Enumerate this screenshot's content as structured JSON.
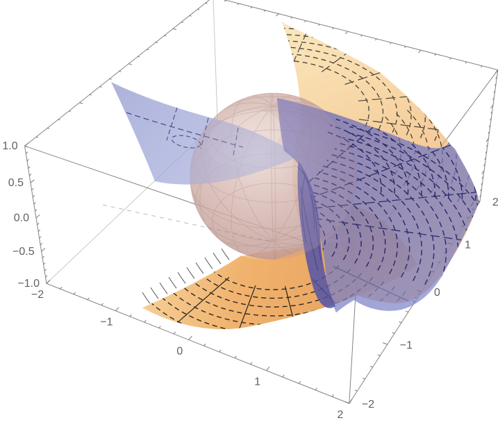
{
  "chart_data": {
    "type": "3d-surface",
    "title": "",
    "background": "#ffffff",
    "projection": "perspective",
    "grid": "box-edges-with-ticks",
    "axes": {
      "x": {
        "range": [
          -2,
          2
        ],
        "tick_values": [
          -2,
          -1,
          0,
          1,
          2
        ],
        "tick_labels": [
          "−2",
          "−1",
          "0",
          "1",
          "2"
        ],
        "minor_step": 0.2
      },
      "y": {
        "range": [
          -2,
          2
        ],
        "tick_values": [
          -2,
          -1,
          0,
          1,
          2
        ],
        "tick_labels": [
          "−2",
          "−1",
          "0",
          "1",
          "2"
        ],
        "minor_step": 0.2
      },
      "z": {
        "range": [
          -1,
          1
        ],
        "tick_values": [
          -1,
          -0.5,
          0,
          0.5,
          1
        ],
        "tick_labels": [
          "−1.0",
          "−0.5",
          "0.0",
          "0.5",
          "1.0"
        ],
        "minor_step": 0.1
      }
    },
    "elements": [
      {
        "name": "translucent-sphere",
        "shape": "sphere",
        "center": [
          0,
          0,
          0
        ],
        "radius": 1,
        "color": "#c9a29c"
      },
      {
        "name": "orange-helical-sheet",
        "shape": "surface",
        "color": "#eda45c",
        "mesh": "dashed-polar",
        "mesh_color": "#1f1f1f"
      },
      {
        "name": "blue-helical-sheet",
        "shape": "surface",
        "color": "#6a70bd",
        "mesh": "dashed-polar",
        "mesh_color": "#14145a"
      }
    ],
    "colors": {
      "axis": "#6a6a6a",
      "hidden_edge": "#9a9a9a",
      "label": "#606060",
      "orange_light": "#f7dc9e",
      "orange_mid": "#f2bb72",
      "orange_deep": "#e59a52",
      "blue_light": "#a8b0dd",
      "blue_mid": "#7d85c3",
      "blue_deep": "#4d51a8",
      "sphere_light": "#ecdcd6",
      "sphere_mid": "#d3b2ac",
      "sphere_edge": "#b08885"
    },
    "label_font_px": 16
  }
}
